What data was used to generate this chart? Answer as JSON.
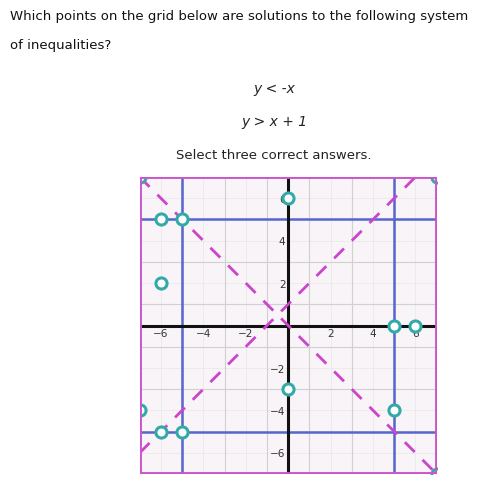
{
  "title_question_line1": "Which points on the grid below are solutions to the following system",
  "title_question_line2": "of inequalities?",
  "inequality1": "y < -x",
  "inequality2": "y > x + 1",
  "select_text": "Select three correct answers.",
  "grid_min": -7,
  "grid_max": 7,
  "axis_ticks": [
    -6,
    -4,
    -2,
    2,
    4,
    6
  ],
  "blue_vlines": [
    -5,
    5
  ],
  "blue_hlines": [
    -5,
    5
  ],
  "border_color": "#cc55cc",
  "dashed_line_color": "#cc44cc",
  "circle_color": "#33aaaa",
  "circle_points": [
    [
      -7,
      7
    ],
    [
      -6,
      5
    ],
    [
      -5,
      5
    ],
    [
      -6,
      2
    ],
    [
      0,
      6
    ],
    [
      -7,
      -4
    ],
    [
      -6,
      -5
    ],
    [
      -5,
      -5
    ],
    [
      0,
      -3
    ],
    [
      5,
      0
    ],
    [
      6,
      0
    ],
    [
      5,
      -4
    ],
    [
      7,
      7
    ],
    [
      7,
      -7
    ]
  ],
  "background_color": "#f8f4f8",
  "grid_color": "#d0d0d0",
  "grid_color_minor": "#e8e8e8",
  "fig_bg": "#ffffff"
}
